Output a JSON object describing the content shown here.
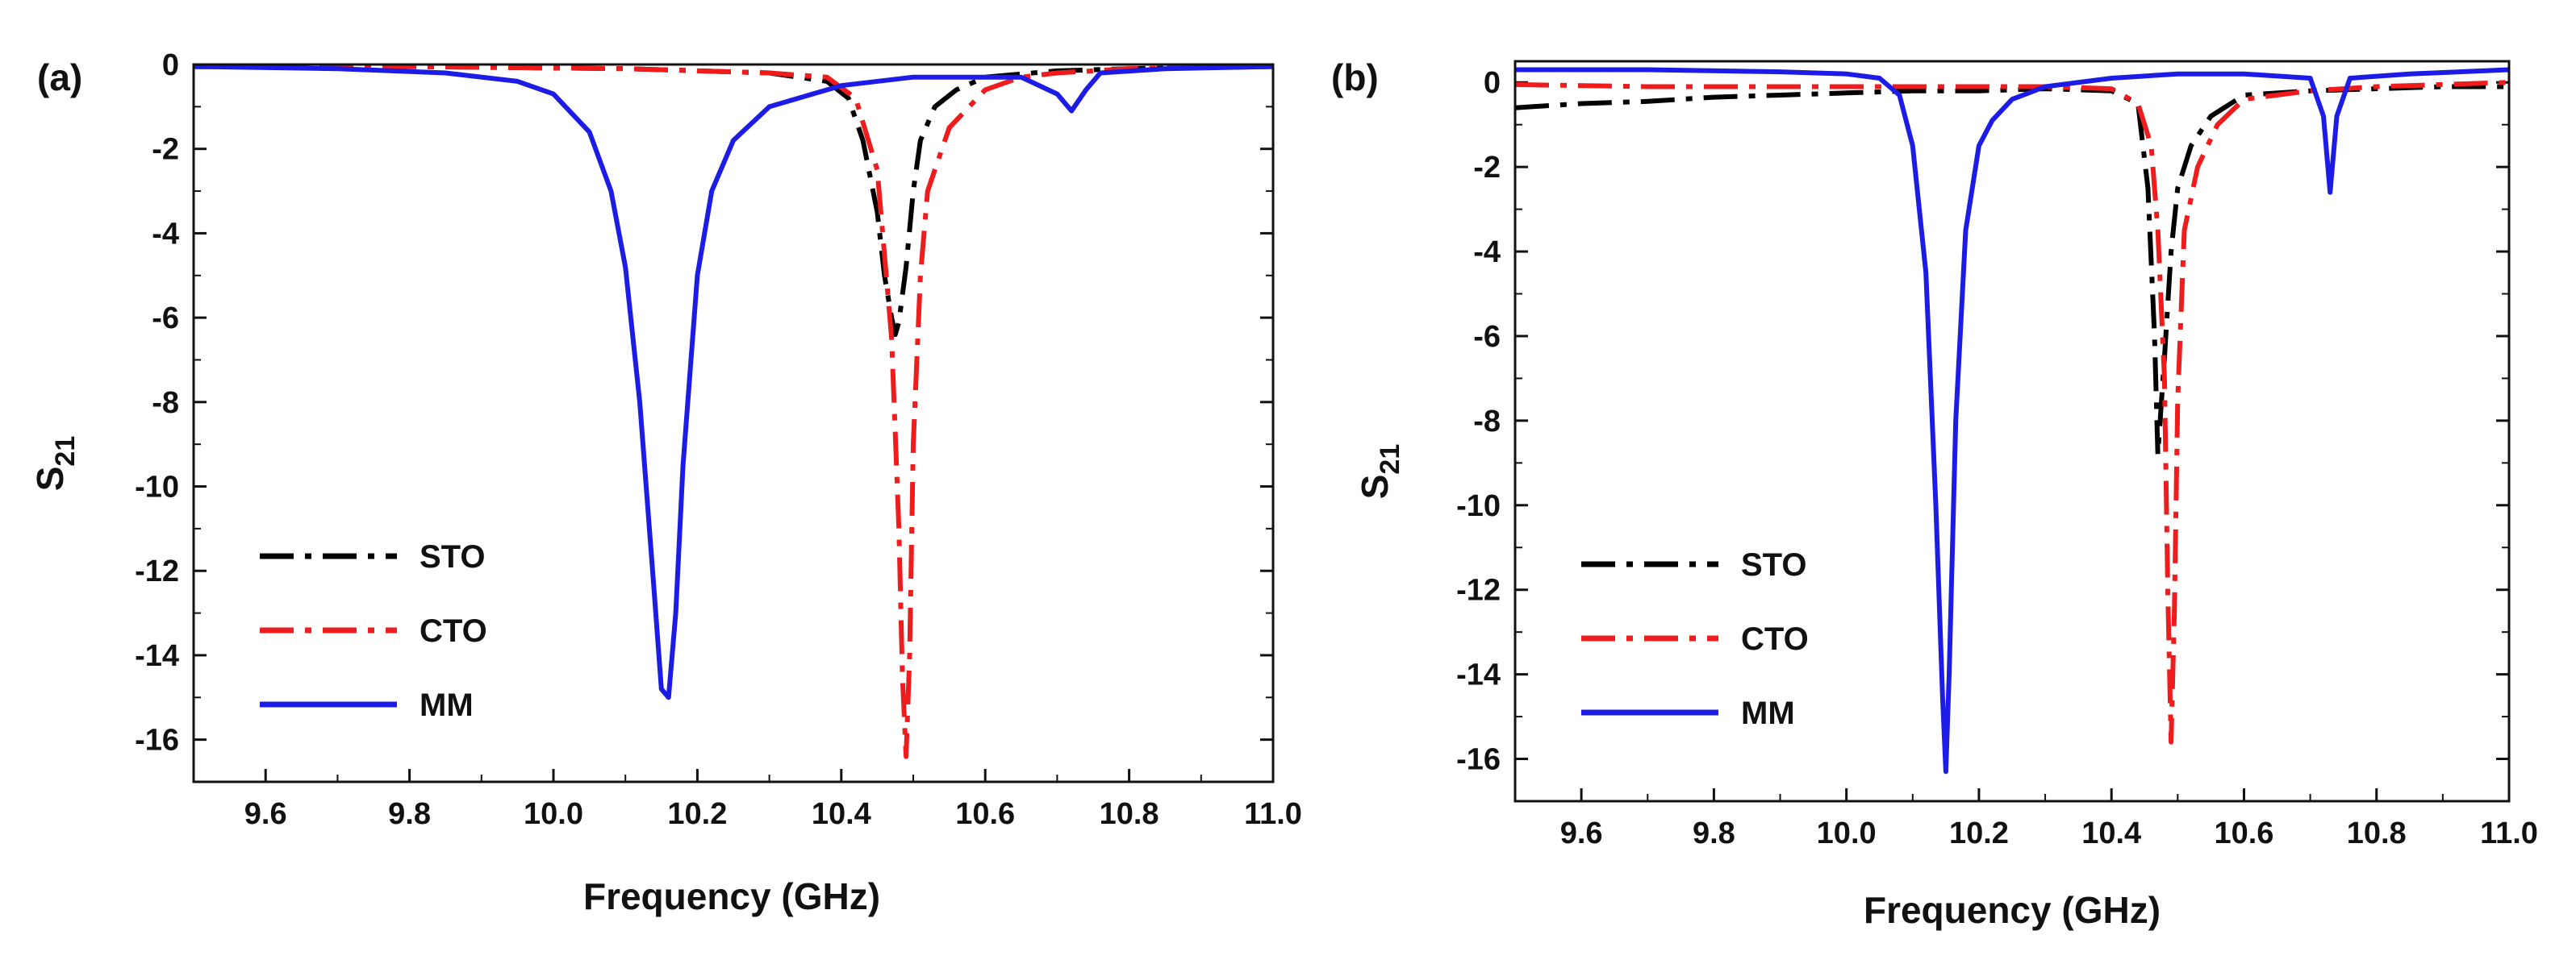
{
  "chart_data": [
    {
      "panel": "(a)",
      "type": "line",
      "title": "",
      "xlabel": "Frequency (GHz)",
      "ylabel": "S21",
      "ylabel_main": "S",
      "ylabel_sub": "21",
      "xlim": [
        9.5,
        11.0
      ],
      "ylim": [
        -17,
        0
      ],
      "xticks": [
        9.6,
        9.8,
        10.0,
        10.2,
        10.4,
        10.6,
        10.8,
        11.0
      ],
      "xtick_labels": [
        "9.6",
        "9.8",
        "10.0",
        "10.2",
        "10.4",
        "10.6",
        "10.8",
        "11.0"
      ],
      "yticks": [
        0,
        -2,
        -4,
        -6,
        -8,
        -10,
        -12,
        -14,
        -16
      ],
      "ytick_labels": [
        "0",
        "-2",
        "-4",
        "-6",
        "-8",
        "-10",
        "-12",
        "-14",
        "-16"
      ],
      "grid": false,
      "legend_position": "bottom-left",
      "series": [
        {
          "name": "STO",
          "color": "#000000",
          "style": "dashdot",
          "x": [
            9.5,
            9.8,
            10.1,
            10.3,
            10.38,
            10.41,
            10.43,
            10.45,
            10.46,
            10.47,
            10.475,
            10.48,
            10.49,
            10.5,
            10.51,
            10.53,
            10.56,
            10.6,
            10.7,
            10.8,
            11.0
          ],
          "y": [
            -0.05,
            -0.05,
            -0.1,
            -0.2,
            -0.4,
            -0.8,
            -1.8,
            -3.5,
            -5.0,
            -6.0,
            -6.4,
            -6.1,
            -4.8,
            -3.0,
            -1.8,
            -1.0,
            -0.6,
            -0.3,
            -0.15,
            -0.1,
            -0.05
          ]
        },
        {
          "name": "CTO",
          "color": "#ee1c1c",
          "style": "dashdot",
          "x": [
            9.5,
            9.8,
            10.1,
            10.3,
            10.38,
            10.42,
            10.45,
            10.47,
            10.48,
            10.485,
            10.49,
            10.495,
            10.5,
            10.51,
            10.52,
            10.55,
            10.6,
            10.65,
            10.7,
            10.8,
            11.0
          ],
          "y": [
            -0.05,
            -0.05,
            -0.1,
            -0.2,
            -0.3,
            -0.8,
            -2.5,
            -6.5,
            -11.0,
            -14.5,
            -16.4,
            -14.0,
            -9.0,
            -5.0,
            -3.0,
            -1.5,
            -0.6,
            -0.3,
            -0.2,
            -0.1,
            -0.05
          ]
        },
        {
          "name": "MM",
          "color": "#1c1ce6",
          "style": "solid",
          "x": [
            9.5,
            9.7,
            9.85,
            9.95,
            10.0,
            10.05,
            10.08,
            10.1,
            10.12,
            10.14,
            10.15,
            10.16,
            10.17,
            10.18,
            10.2,
            10.22,
            10.25,
            10.3,
            10.4,
            10.5,
            10.65,
            10.7,
            10.72,
            10.74,
            10.76,
            10.85,
            11.0
          ],
          "y": [
            -0.05,
            -0.1,
            -0.2,
            -0.4,
            -0.7,
            -1.6,
            -3.0,
            -4.8,
            -8.0,
            -12.5,
            -14.8,
            -15.0,
            -13.0,
            -9.5,
            -5.0,
            -3.0,
            -1.8,
            -1.0,
            -0.5,
            -0.3,
            -0.3,
            -0.7,
            -1.1,
            -0.6,
            -0.2,
            -0.1,
            -0.05
          ]
        }
      ],
      "legend": [
        {
          "label": "STO",
          "color": "#000000",
          "style": "dashdot"
        },
        {
          "label": "CTO",
          "color": "#ee1c1c",
          "style": "dashdot"
        },
        {
          "label": "MM",
          "color": "#1c1ce6",
          "style": "solid"
        }
      ]
    },
    {
      "panel": "(b)",
      "type": "line",
      "title": "",
      "xlabel": "Frequency (GHz)",
      "ylabel": "S21",
      "ylabel_main": "S",
      "ylabel_sub": "21",
      "xlim": [
        9.5,
        11.0
      ],
      "ylim": [
        -17,
        0.5
      ],
      "xticks": [
        9.6,
        9.8,
        10.0,
        10.2,
        10.4,
        10.6,
        10.8,
        11.0
      ],
      "xtick_labels": [
        "9.6",
        "9.8",
        "10.0",
        "10.2",
        "10.4",
        "10.6",
        "10.8",
        "11.0"
      ],
      "yticks": [
        0,
        -2,
        -4,
        -6,
        -8,
        -10,
        -12,
        -14,
        -16
      ],
      "ytick_labels": [
        "0",
        "-2",
        "-4",
        "-6",
        "-8",
        "-10",
        "-12",
        "-14",
        "-16"
      ],
      "grid": false,
      "legend_position": "bottom-left",
      "series": [
        {
          "name": "STO",
          "color": "#000000",
          "style": "dashdot",
          "x": [
            9.5,
            9.6,
            9.7,
            9.8,
            9.9,
            10.0,
            10.1,
            10.2,
            10.3,
            10.4,
            10.44,
            10.455,
            10.465,
            10.47,
            10.48,
            10.49,
            10.5,
            10.52,
            10.55,
            10.6,
            10.7,
            10.8,
            10.9,
            11.0
          ],
          "y": [
            -0.6,
            -0.5,
            -0.45,
            -0.35,
            -0.3,
            -0.25,
            -0.2,
            -0.2,
            -0.15,
            -0.2,
            -0.5,
            -2.5,
            -6.0,
            -8.8,
            -6.5,
            -4.0,
            -2.5,
            -1.5,
            -0.8,
            -0.3,
            -0.2,
            -0.15,
            -0.1,
            -0.1
          ]
        },
        {
          "name": "CTO",
          "color": "#ee1c1c",
          "style": "dashdot",
          "x": [
            9.5,
            9.7,
            9.9,
            10.1,
            10.3,
            10.4,
            10.44,
            10.46,
            10.47,
            10.48,
            10.485,
            10.49,
            10.495,
            10.5,
            10.51,
            10.53,
            10.56,
            10.6,
            10.7,
            10.8,
            11.0
          ],
          "y": [
            -0.05,
            -0.1,
            -0.1,
            -0.1,
            -0.1,
            -0.15,
            -0.5,
            -1.5,
            -3.5,
            -7.0,
            -12.0,
            -15.6,
            -12.5,
            -7.5,
            -3.5,
            -2.0,
            -1.0,
            -0.4,
            -0.2,
            -0.1,
            0.0
          ]
        },
        {
          "name": "MM",
          "color": "#1c1ce6",
          "style": "solid",
          "x": [
            9.5,
            9.7,
            9.9,
            10.0,
            10.05,
            10.08,
            10.1,
            10.12,
            10.135,
            10.145,
            10.15,
            10.155,
            10.165,
            10.18,
            10.2,
            10.22,
            10.25,
            10.3,
            10.4,
            10.5,
            10.6,
            10.7,
            10.72,
            10.73,
            10.74,
            10.76,
            10.85,
            11.0
          ],
          "y": [
            0.3,
            0.3,
            0.25,
            0.2,
            0.1,
            -0.3,
            -1.5,
            -4.5,
            -10.0,
            -14.5,
            -16.3,
            -14.0,
            -8.0,
            -3.5,
            -1.5,
            -0.9,
            -0.4,
            -0.1,
            0.1,
            0.2,
            0.2,
            0.1,
            -0.8,
            -2.6,
            -0.8,
            0.1,
            0.2,
            0.3
          ]
        }
      ],
      "legend": [
        {
          "label": "STO",
          "color": "#000000",
          "style": "dashdot"
        },
        {
          "label": "CTO",
          "color": "#ee1c1c",
          "style": "dashdot"
        },
        {
          "label": "MM",
          "color": "#1c1ce6",
          "style": "solid"
        }
      ]
    }
  ]
}
